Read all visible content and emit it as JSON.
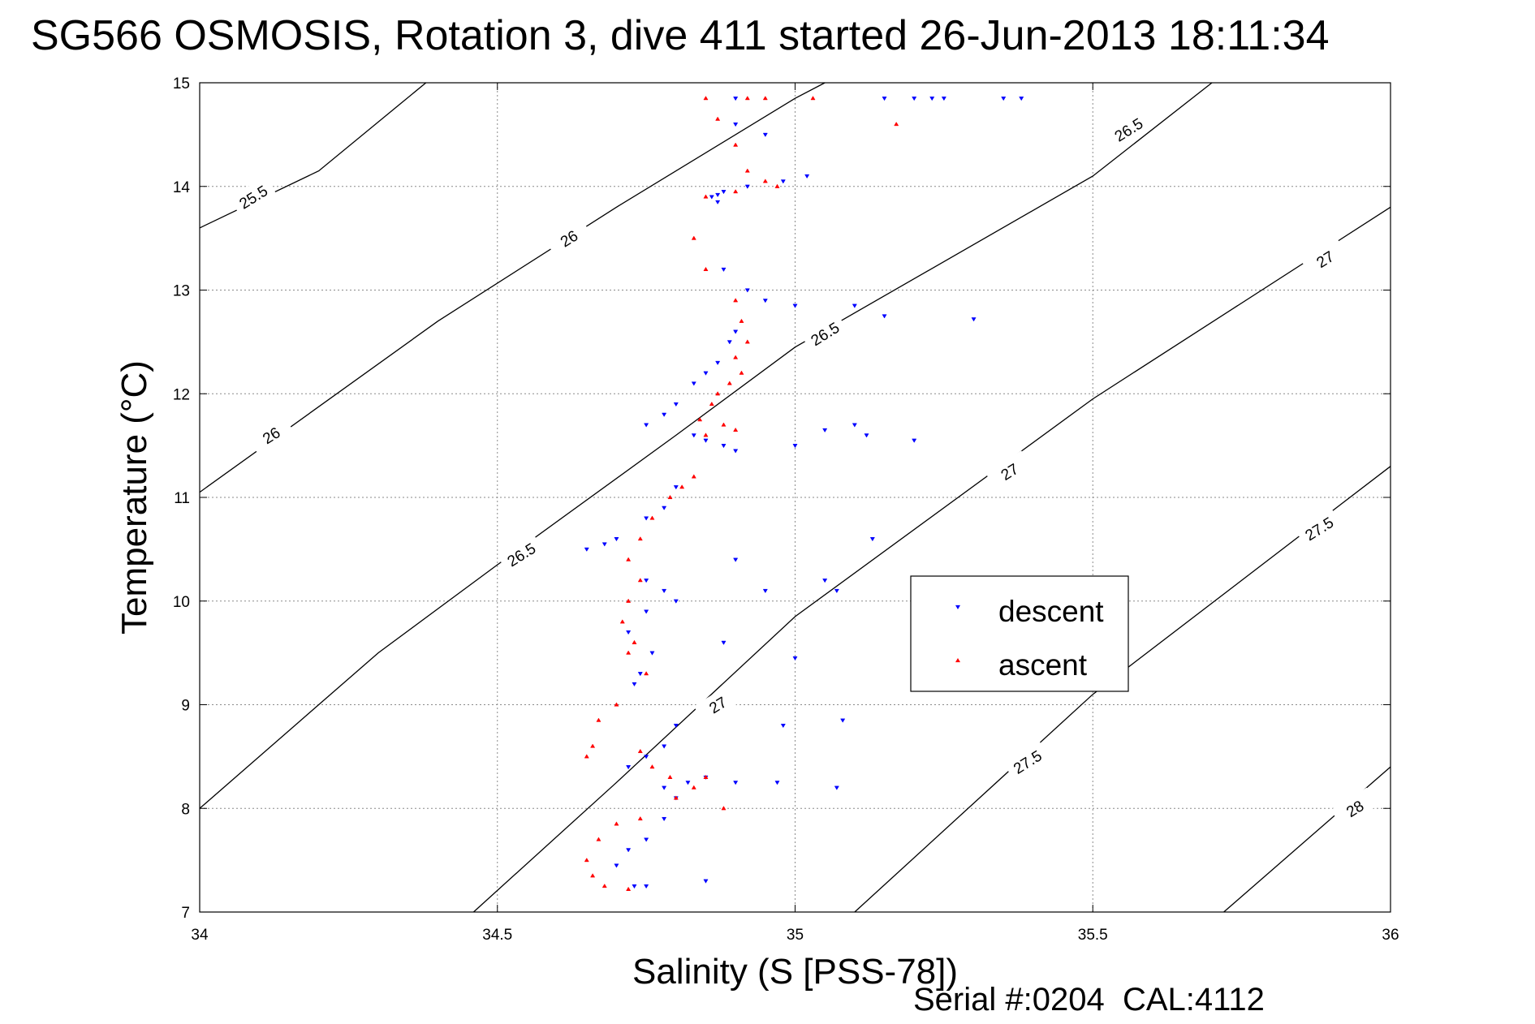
{
  "title": "SG566 OSMOSIS, Rotation 3, dive 411 started 26-Jun-2013 18:11:34",
  "footer": {
    "serial_label": "Serial #:",
    "serial": "0204",
    "cal_label": "CAL:",
    "cal": "4112"
  },
  "colors": {
    "descent": "#0000ff",
    "ascent": "#ff0000",
    "contour": "#000000",
    "grid": "#8a8a8a"
  },
  "chart_data": {
    "type": "scatter",
    "xlabel": "Salinity (S [PSS-78])",
    "ylabel": "Temperature (°C)",
    "xlim": [
      34,
      36
    ],
    "ylim": [
      7,
      15
    ],
    "xticks": [
      34,
      34.5,
      35,
      35.5,
      36
    ],
    "xtick_labels": [
      "34",
      "34.5",
      "35",
      "35.5",
      "36"
    ],
    "yticks": [
      7,
      8,
      9,
      10,
      11,
      12,
      13,
      14,
      15
    ],
    "ytick_labels": [
      "7",
      "8",
      "9",
      "10",
      "11",
      "12",
      "13",
      "14",
      "15"
    ],
    "grid": true,
    "legend_position": "center-right",
    "density_contours": [
      {
        "level": 25.5,
        "points": [
          [
            34,
            13.6
          ],
          [
            34.2,
            14.15
          ],
          [
            34.38,
            15.0
          ]
        ],
        "labels": [
          {
            "text": "25.5",
            "x": 34.09,
            "y": 13.9
          }
        ]
      },
      {
        "level": 26,
        "points": [
          [
            34,
            11.05
          ],
          [
            34.4,
            12.7
          ],
          [
            34.7,
            13.8
          ],
          [
            35.0,
            14.85
          ],
          [
            35.05,
            15.0
          ]
        ],
        "labels": [
          {
            "text": "26",
            "x": 34.12,
            "y": 11.6
          },
          {
            "text": "26",
            "x": 34.62,
            "y": 13.5
          }
        ]
      },
      {
        "level": 26.5,
        "points": [
          [
            34,
            8.0
          ],
          [
            34.3,
            9.5
          ],
          [
            34.5,
            10.35
          ],
          [
            34.8,
            11.6
          ],
          [
            35.0,
            12.45
          ],
          [
            35.5,
            14.1
          ],
          [
            35.7,
            15.0
          ]
        ],
        "labels": [
          {
            "text": "26.5",
            "x": 34.54,
            "y": 10.45
          },
          {
            "text": "26.5",
            "x": 35.05,
            "y": 12.58
          },
          {
            "text": "26.5",
            "x": 35.56,
            "y": 14.55
          }
        ]
      },
      {
        "level": 27,
        "points": [
          [
            34.46,
            7.0
          ],
          [
            34.7,
            8.25
          ],
          [
            35.0,
            9.85
          ],
          [
            35.5,
            11.95
          ],
          [
            36,
            13.8
          ]
        ],
        "labels": [
          {
            "text": "27",
            "x": 34.87,
            "y": 9.0
          },
          {
            "text": "27",
            "x": 35.36,
            "y": 11.25
          },
          {
            "text": "27",
            "x": 35.89,
            "y": 13.3
          }
        ]
      },
      {
        "level": 27.5,
        "points": [
          [
            35.1,
            7.0
          ],
          [
            35.5,
            9.1
          ],
          [
            36,
            11.3
          ]
        ],
        "labels": [
          {
            "text": "27.5",
            "x": 35.39,
            "y": 8.45
          },
          {
            "text": "27.5",
            "x": 35.88,
            "y": 10.7
          }
        ]
      },
      {
        "level": 28,
        "points": [
          [
            35.72,
            7.0
          ],
          [
            36,
            8.4
          ]
        ],
        "labels": [
          {
            "text": "28",
            "x": 35.94,
            "y": 8.0
          }
        ]
      }
    ],
    "series": [
      {
        "name": "descent",
        "marker": "triangle-down",
        "points": [
          [
            34.9,
            14.85
          ],
          [
            35.15,
            14.85
          ],
          [
            35.2,
            14.85
          ],
          [
            35.23,
            14.85
          ],
          [
            35.25,
            14.85
          ],
          [
            35.35,
            14.85
          ],
          [
            35.38,
            14.85
          ],
          [
            34.9,
            14.6
          ],
          [
            34.95,
            14.5
          ],
          [
            35.02,
            14.1
          ],
          [
            34.98,
            14.05
          ],
          [
            34.92,
            14.0
          ],
          [
            34.88,
            13.95
          ],
          [
            34.87,
            13.92
          ],
          [
            34.86,
            13.9
          ],
          [
            34.87,
            13.85
          ],
          [
            34.88,
            13.2
          ],
          [
            34.92,
            13.0
          ],
          [
            34.95,
            12.9
          ],
          [
            35.0,
            12.85
          ],
          [
            35.1,
            12.85
          ],
          [
            35.15,
            12.75
          ],
          [
            35.3,
            12.72
          ],
          [
            34.9,
            12.6
          ],
          [
            34.89,
            12.5
          ],
          [
            34.87,
            12.3
          ],
          [
            34.85,
            12.2
          ],
          [
            34.83,
            12.1
          ],
          [
            34.8,
            11.9
          ],
          [
            34.78,
            11.8
          ],
          [
            34.75,
            11.7
          ],
          [
            34.83,
            11.6
          ],
          [
            34.85,
            11.55
          ],
          [
            34.88,
            11.5
          ],
          [
            34.9,
            11.45
          ],
          [
            35.0,
            11.5
          ],
          [
            35.05,
            11.65
          ],
          [
            35.1,
            11.7
          ],
          [
            35.12,
            11.6
          ],
          [
            35.2,
            11.55
          ],
          [
            34.8,
            11.1
          ],
          [
            34.78,
            10.9
          ],
          [
            34.75,
            10.8
          ],
          [
            34.7,
            10.6
          ],
          [
            34.68,
            10.55
          ],
          [
            34.65,
            10.5
          ],
          [
            34.75,
            10.2
          ],
          [
            34.78,
            10.1
          ],
          [
            34.8,
            10.0
          ],
          [
            34.75,
            9.9
          ],
          [
            34.72,
            9.7
          ],
          [
            34.76,
            9.5
          ],
          [
            34.74,
            9.3
          ],
          [
            34.73,
            9.2
          ],
          [
            34.9,
            10.4
          ],
          [
            34.95,
            10.1
          ],
          [
            35.05,
            10.2
          ],
          [
            35.07,
            10.1
          ],
          [
            35.13,
            10.6
          ],
          [
            34.88,
            9.6
          ],
          [
            35.0,
            9.45
          ],
          [
            34.8,
            8.8
          ],
          [
            34.78,
            8.6
          ],
          [
            34.75,
            8.5
          ],
          [
            34.72,
            8.4
          ],
          [
            34.78,
            8.2
          ],
          [
            34.8,
            8.1
          ],
          [
            34.82,
            8.25
          ],
          [
            34.85,
            8.3
          ],
          [
            34.9,
            8.25
          ],
          [
            34.97,
            8.25
          ],
          [
            35.07,
            8.2
          ],
          [
            35.08,
            8.85
          ],
          [
            34.98,
            8.8
          ],
          [
            34.78,
            7.9
          ],
          [
            34.75,
            7.7
          ],
          [
            34.72,
            7.6
          ],
          [
            34.7,
            7.45
          ],
          [
            34.75,
            7.25
          ],
          [
            34.73,
            7.25
          ],
          [
            34.85,
            7.3
          ]
        ]
      },
      {
        "name": "ascent",
        "marker": "triangle-up",
        "points": [
          [
            34.85,
            14.85
          ],
          [
            34.92,
            14.85
          ],
          [
            34.95,
            14.85
          ],
          [
            35.03,
            14.85
          ],
          [
            35.17,
            14.6
          ],
          [
            34.87,
            14.65
          ],
          [
            34.9,
            14.4
          ],
          [
            34.92,
            14.15
          ],
          [
            34.95,
            14.05
          ],
          [
            34.97,
            14.0
          ],
          [
            34.9,
            13.95
          ],
          [
            34.85,
            13.9
          ],
          [
            34.83,
            13.5
          ],
          [
            34.85,
            13.2
          ],
          [
            34.9,
            12.9
          ],
          [
            34.91,
            12.7
          ],
          [
            34.92,
            12.5
          ],
          [
            34.9,
            12.35
          ],
          [
            34.91,
            12.2
          ],
          [
            34.89,
            12.1
          ],
          [
            34.87,
            12.0
          ],
          [
            34.86,
            11.9
          ],
          [
            34.84,
            11.75
          ],
          [
            34.88,
            11.7
          ],
          [
            34.9,
            11.65
          ],
          [
            34.85,
            11.6
          ],
          [
            34.83,
            11.2
          ],
          [
            34.81,
            11.1
          ],
          [
            34.79,
            11.0
          ],
          [
            34.76,
            10.8
          ],
          [
            34.74,
            10.6
          ],
          [
            34.72,
            10.4
          ],
          [
            34.74,
            10.2
          ],
          [
            34.72,
            10.0
          ],
          [
            34.71,
            9.8
          ],
          [
            34.73,
            9.6
          ],
          [
            34.72,
            9.5
          ],
          [
            34.75,
            9.3
          ],
          [
            34.7,
            9.0
          ],
          [
            34.67,
            8.85
          ],
          [
            34.66,
            8.6
          ],
          [
            34.65,
            8.5
          ],
          [
            34.74,
            8.55
          ],
          [
            34.76,
            8.4
          ],
          [
            34.79,
            8.3
          ],
          [
            34.83,
            8.2
          ],
          [
            34.85,
            8.3
          ],
          [
            34.88,
            8.0
          ],
          [
            34.8,
            8.1
          ],
          [
            34.74,
            7.9
          ],
          [
            34.7,
            7.85
          ],
          [
            34.67,
            7.7
          ],
          [
            34.65,
            7.5
          ],
          [
            34.66,
            7.35
          ],
          [
            34.68,
            7.25
          ],
          [
            34.72,
            7.22
          ]
        ]
      }
    ],
    "legend": [
      {
        "label": "descent",
        "series": "descent"
      },
      {
        "label": "ascent",
        "series": "ascent"
      }
    ]
  }
}
